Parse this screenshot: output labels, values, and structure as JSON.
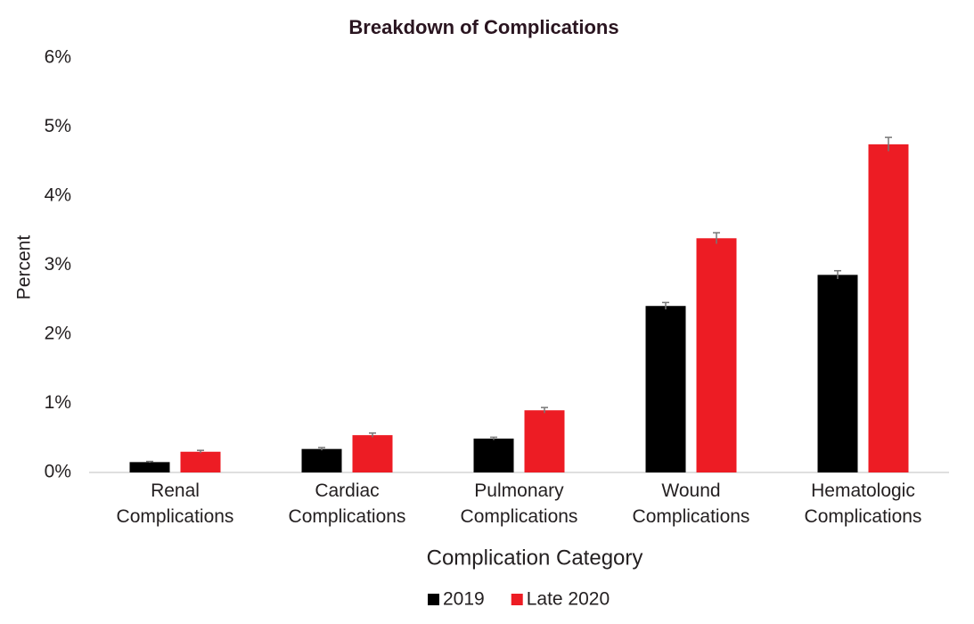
{
  "chart_data": {
    "type": "bar",
    "title": "Breakdown of Complications",
    "x_label": "Complication Category",
    "y_label": "Percent",
    "categories": [
      "Renal Complications",
      "Cardiac Complications",
      "Pulmonary Complications",
      "Wound Complications",
      "Hematologic Complications"
    ],
    "series": [
      {
        "name": "2019",
        "color": "#000000",
        "values": [
          0.15,
          0.34,
          0.49,
          2.41,
          2.86
        ],
        "errors": [
          0.01,
          0.02,
          0.02,
          0.05,
          0.06
        ]
      },
      {
        "name": "Late 2020",
        "color": "#ed1c24",
        "values": [
          0.3,
          0.54,
          0.9,
          3.39,
          4.75
        ],
        "errors": [
          0.02,
          0.03,
          0.04,
          0.08,
          0.1
        ]
      }
    ],
    "ylim": [
      0,
      6
    ],
    "yticks": [
      {
        "value": 0,
        "label": "0%"
      },
      {
        "value": 1,
        "label": "1%"
      },
      {
        "value": 2,
        "label": "2%"
      },
      {
        "value": 3,
        "label": "3%"
      },
      {
        "value": 4,
        "label": "4%"
      },
      {
        "value": 5,
        "label": "5%"
      },
      {
        "value": 6,
        "label": "6%"
      }
    ],
    "grid": false,
    "legend": "bottom"
  }
}
